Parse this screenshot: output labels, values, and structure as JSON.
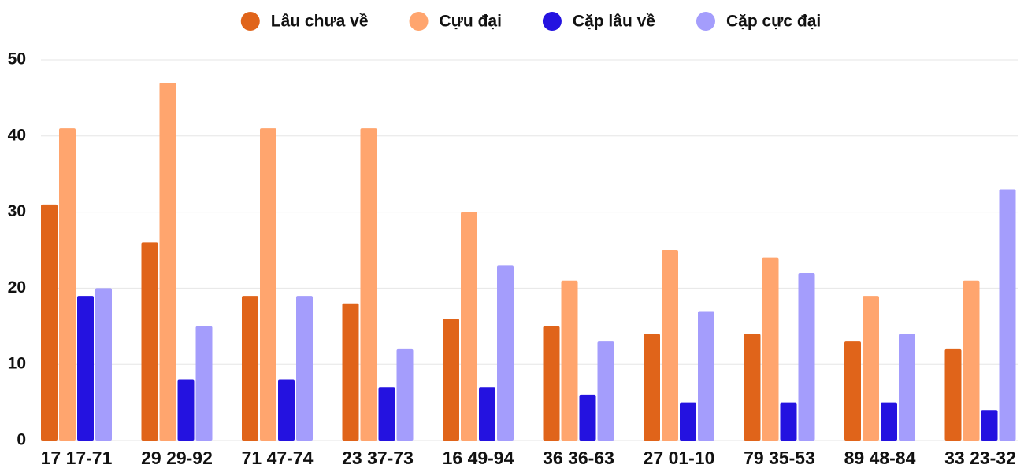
{
  "chart_data": {
    "type": "bar",
    "categories": [
      "17 17-71",
      "29 29-92",
      "71 47-74",
      "23 37-73",
      "16 49-94",
      "36 36-63",
      "27 01-10",
      "79 35-53",
      "89 48-84",
      "33 23-32"
    ],
    "series": [
      {
        "name": "Lâu chưa về",
        "color": "#e0641a",
        "values": [
          31,
          26,
          19,
          18,
          16,
          15,
          14,
          14,
          13,
          12
        ]
      },
      {
        "name": "Cựu đại",
        "color": "#ffa56e",
        "values": [
          41,
          47,
          41,
          41,
          30,
          21,
          25,
          24,
          19,
          21
        ]
      },
      {
        "name": "Cặp lâu về",
        "color": "#2412e0",
        "values": [
          19,
          8,
          8,
          7,
          7,
          6,
          5,
          5,
          5,
          4
        ]
      },
      {
        "name": "Cặp cực đại",
        "color": "#a49dfc",
        "values": [
          20,
          15,
          19,
          12,
          23,
          13,
          17,
          22,
          14,
          33
        ]
      }
    ],
    "ylim": [
      0,
      50
    ],
    "yticks": [
      0,
      10,
      20,
      30,
      40,
      50
    ],
    "grid": true,
    "legend": "top"
  }
}
